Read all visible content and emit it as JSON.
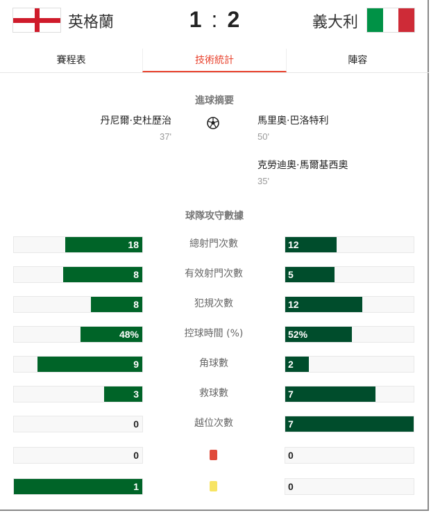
{
  "header": {
    "home_team": "英格蘭",
    "away_team": "義大利",
    "home_score": "1",
    "separator": ":",
    "away_score": "2",
    "home_flag_colors": [
      "#ffffff",
      "#cf1b2b"
    ],
    "away_flag_colors": [
      "#009246",
      "#ffffff",
      "#ce2b37"
    ]
  },
  "tabs": [
    {
      "label": "賽程表",
      "active": false
    },
    {
      "label": "技術統計",
      "active": true
    },
    {
      "label": "陣容",
      "active": false
    }
  ],
  "goals": {
    "title": "進球摘要",
    "icon": "soccer-ball-icon",
    "home": [
      {
        "player": "丹尼爾·史杜歷治",
        "minute": "37'"
      }
    ],
    "away": [
      {
        "player": "馬里奧·巴洛特利",
        "minute": "50'"
      },
      {
        "player": "克勞迪奧·馬爾基西奧",
        "minute": "35'"
      }
    ]
  },
  "stats": {
    "title": "球隊攻守數據",
    "colors": {
      "home": "#006428",
      "away": "#004d2c",
      "track": "#f8f8f8"
    },
    "rows": [
      {
        "label": "總射門次數",
        "home": 18,
        "away": 12,
        "home_text": "18",
        "away_text": "12"
      },
      {
        "label": "有效射門次數",
        "home": 8,
        "away": 5,
        "home_text": "8",
        "away_text": "5"
      },
      {
        "label": "犯規次數",
        "home": 8,
        "away": 12,
        "home_text": "8",
        "away_text": "12"
      },
      {
        "label": "控球時間 (%)",
        "home": 48,
        "away": 52,
        "home_text": "48%",
        "away_text": "52%"
      },
      {
        "label": "角球數",
        "home": 9,
        "away": 2,
        "home_text": "9",
        "away_text": "2"
      },
      {
        "label": "救球數",
        "home": 3,
        "away": 7,
        "home_text": "3",
        "away_text": "7"
      },
      {
        "label": "越位次數",
        "home": 0,
        "away": 7,
        "home_text": "0",
        "away_text": "7"
      },
      {
        "label": "",
        "icon": "red-card-icon",
        "icon_color": "#e04a3a",
        "home": 0,
        "away": 0,
        "home_text": "0",
        "away_text": "0"
      },
      {
        "label": "",
        "icon": "yellow-card-icon",
        "icon_color": "#f7e463",
        "home": 1,
        "away": 0,
        "home_text": "1",
        "away_text": "0"
      }
    ]
  }
}
